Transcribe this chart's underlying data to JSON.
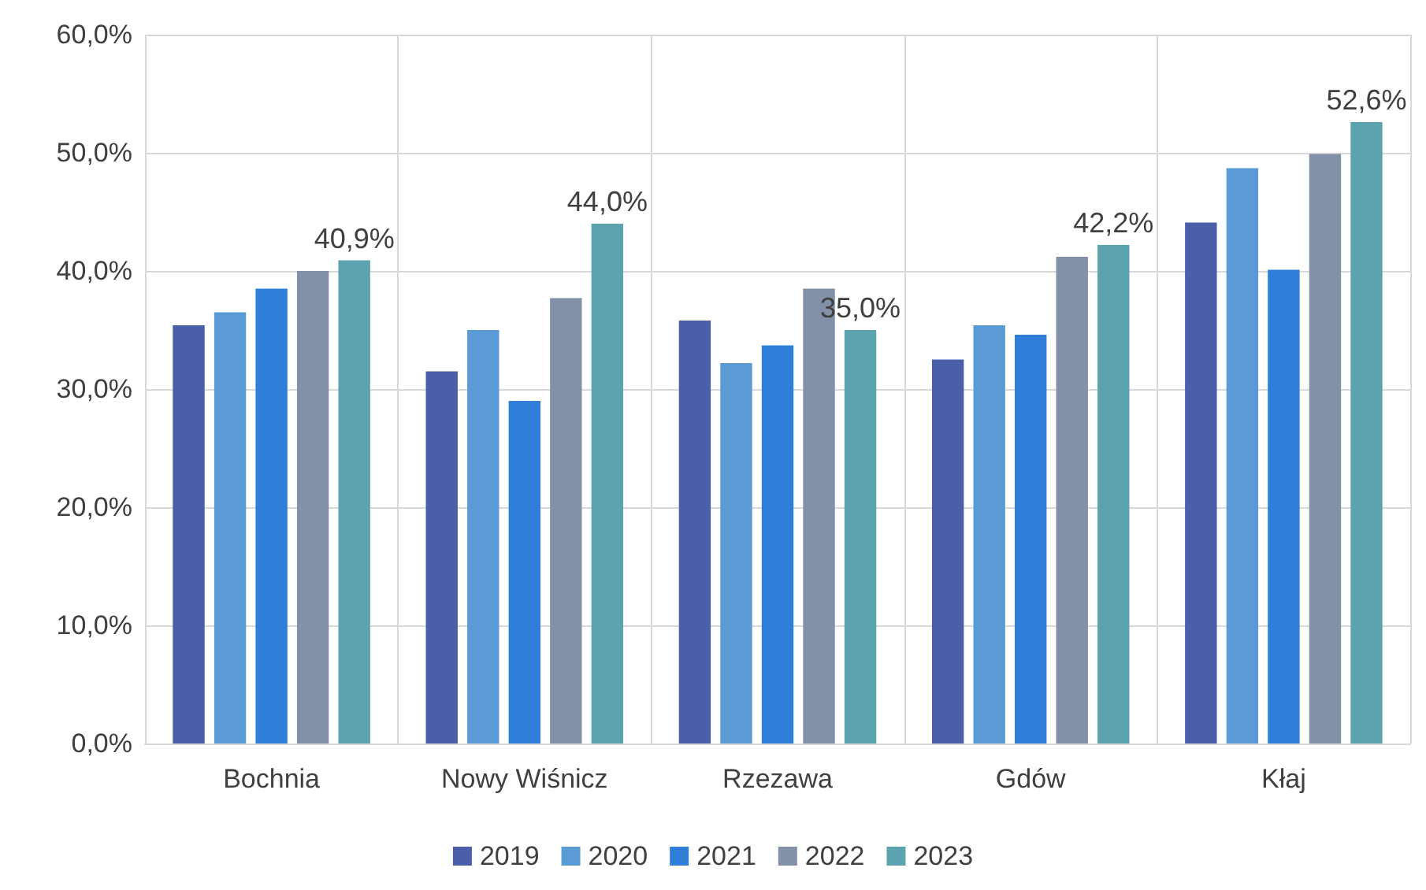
{
  "chart_data": {
    "type": "bar",
    "categories": [
      "Bochnia",
      "Nowy Wiśnicz",
      "Rzezawa",
      "Gdów",
      "Kłaj"
    ],
    "series": [
      {
        "name": "2019",
        "color": "#4a5fa8",
        "values": [
          35.4,
          31.5,
          35.8,
          32.5,
          44.1
        ]
      },
      {
        "name": "2020",
        "color": "#5b9bd5",
        "values": [
          36.5,
          35.0,
          32.2,
          35.4,
          48.7
        ]
      },
      {
        "name": "2021",
        "color": "#2f7ed8",
        "values": [
          38.5,
          29.0,
          33.7,
          34.6,
          40.1
        ]
      },
      {
        "name": "2022",
        "color": "#8290a8",
        "values": [
          40.0,
          37.7,
          38.5,
          41.2,
          49.9
        ]
      },
      {
        "name": "2023",
        "color": "#5ba3ae",
        "values": [
          40.9,
          44.0,
          35.0,
          42.2,
          52.6
        ],
        "value_labels": [
          "40,9%",
          "44,0%",
          "35,0%",
          "42,2%",
          "52,6%"
        ]
      }
    ],
    "ylim": [
      0,
      60
    ],
    "yticks": [
      {
        "value": 0,
        "label": "0,0%"
      },
      {
        "value": 10,
        "label": "10,0%"
      },
      {
        "value": 20,
        "label": "20,0%"
      },
      {
        "value": 30,
        "label": "30,0%"
      },
      {
        "value": 40,
        "label": "40,0%"
      },
      {
        "value": 50,
        "label": "50,0%"
      },
      {
        "value": 60,
        "label": "60,0%"
      }
    ],
    "grid": true,
    "legend": "bottom"
  }
}
